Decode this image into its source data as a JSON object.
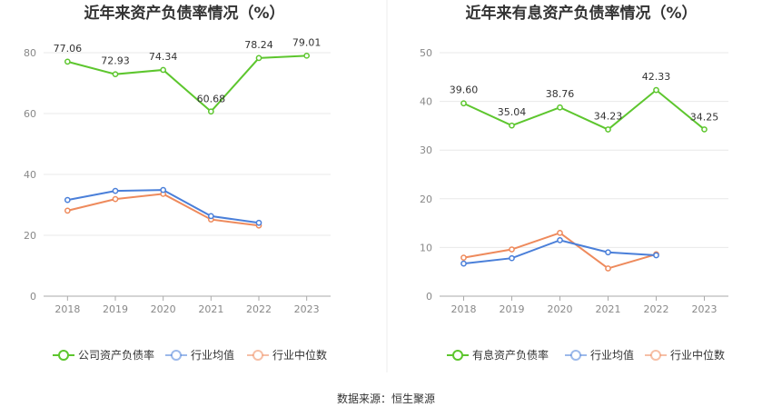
{
  "source": "数据来源：恒生聚源",
  "chart_data": [
    {
      "type": "line",
      "title": "近年来资产负债率情况（%）",
      "categories": [
        "2018",
        "2019",
        "2020",
        "2021",
        "2022",
        "2023"
      ],
      "ylim": [
        0,
        80
      ],
      "yticks": [
        0,
        20,
        40,
        60,
        80
      ],
      "grid": true,
      "legend": "bottom",
      "series": [
        {
          "name": "公司资产负债率",
          "color": "#5dc62e",
          "values": [
            77.06,
            72.93,
            74.34,
            60.68,
            78.24,
            79.01
          ],
          "labels": [
            "77.06",
            "72.93",
            "74.34",
            "60.68",
            "78.24",
            "79.01"
          ]
        },
        {
          "name": "行业均值",
          "color": "#4a7fd9",
          "values": [
            31.6,
            34.6,
            34.9,
            26.3,
            24.1,
            null
          ]
        },
        {
          "name": "行业中位数",
          "color": "#ee8a5c",
          "values": [
            28.1,
            31.9,
            33.6,
            25.2,
            23.2,
            null
          ]
        }
      ]
    },
    {
      "type": "line",
      "title": "近年来有息资产负债率情况（%）",
      "categories": [
        "2018",
        "2019",
        "2020",
        "2021",
        "2022",
        "2023"
      ],
      "ylim": [
        0,
        50
      ],
      "yticks": [
        0,
        10,
        20,
        30,
        40,
        50
      ],
      "grid": true,
      "legend": "bottom",
      "series": [
        {
          "name": "有息资产负债率",
          "color": "#5dc62e",
          "values": [
            39.6,
            35.04,
            38.76,
            34.23,
            42.33,
            34.25
          ],
          "labels": [
            "39.60",
            "35.04",
            "38.76",
            "34.23",
            "42.33",
            "34.25"
          ]
        },
        {
          "name": "行业均值",
          "color": "#4a7fd9",
          "values": [
            6.7,
            7.8,
            11.5,
            9.0,
            8.4,
            null
          ]
        },
        {
          "name": "行业中位数",
          "color": "#ee8a5c",
          "values": [
            7.9,
            9.6,
            13.0,
            5.7,
            8.6,
            null
          ]
        }
      ]
    }
  ]
}
